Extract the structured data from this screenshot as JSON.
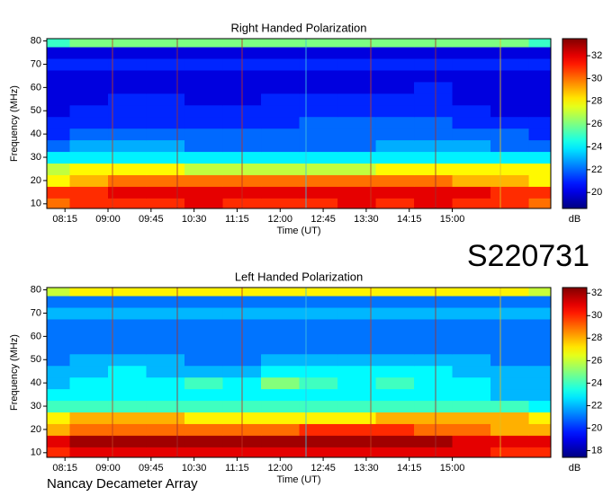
{
  "chart_data": [
    {
      "type": "heatmap",
      "title": "Right Handed Polarization",
      "x_label": "Time (UT)",
      "y_label": "Frequency (MHz)",
      "colorbar_label": "dB",
      "xlim": [
        476,
        1003
      ],
      "ylim": [
        8,
        81
      ],
      "clim": [
        18.6,
        33.5
      ],
      "xticks": [
        {
          "value": 495,
          "label": "08:15"
        },
        {
          "value": 540,
          "label": "09:00"
        },
        {
          "value": 585,
          "label": "09:45"
        },
        {
          "value": 630,
          "label": "10:30"
        },
        {
          "value": 675,
          "label": "11:15"
        },
        {
          "value": 720,
          "label": "12:00"
        },
        {
          "value": 765,
          "label": "12:45"
        },
        {
          "value": 810,
          "label": "13:30"
        },
        {
          "value": 855,
          "label": "14:15"
        },
        {
          "value": 900,
          "label": "15:00"
        }
      ],
      "yticks": [
        10,
        20,
        30,
        40,
        50,
        60,
        70,
        80
      ],
      "cticks": [
        20,
        22,
        24,
        26,
        28,
        30,
        32
      ],
      "x": [
        480,
        520,
        560,
        600,
        640,
        680,
        720,
        760,
        800,
        840,
        880,
        920,
        960,
        1000
      ],
      "y": [
        10,
        15,
        20,
        25,
        30,
        35,
        40,
        45,
        50,
        55,
        60,
        65,
        70,
        75,
        80
      ],
      "z": [
        [
          30,
          31,
          31,
          31,
          32,
          31,
          31,
          31,
          32,
          31,
          32,
          31,
          31,
          30
        ],
        [
          31,
          31,
          32,
          32,
          32,
          32,
          32,
          32,
          32,
          32,
          32,
          32,
          31,
          31
        ],
        [
          28,
          29,
          30,
          30,
          30,
          30,
          30,
          30,
          30,
          30,
          30,
          29,
          29,
          28
        ],
        [
          27,
          28,
          28,
          28,
          27,
          27,
          27,
          27,
          27,
          28,
          28,
          28,
          28,
          28
        ],
        [
          24,
          24,
          24,
          24,
          24,
          24,
          24,
          24,
          24,
          24,
          24,
          24,
          24,
          24
        ],
        [
          22,
          23,
          23,
          23,
          22,
          22,
          22,
          22,
          22,
          23,
          23,
          23,
          22,
          22
        ],
        [
          21,
          22,
          22,
          22,
          22,
          22,
          22,
          22,
          22,
          22,
          22,
          22,
          22,
          21
        ],
        [
          21,
          21,
          21,
          21,
          21,
          21,
          21,
          22,
          22,
          22,
          22,
          21,
          21,
          21
        ],
        [
          20,
          21,
          21,
          21,
          21,
          21,
          21,
          21,
          21,
          21,
          21,
          21,
          20,
          20
        ],
        [
          20,
          20,
          21,
          21,
          20,
          20,
          21,
          21,
          21,
          21,
          21,
          20,
          20,
          20
        ],
        [
          20,
          20,
          20,
          20,
          20,
          20,
          20,
          20,
          20,
          20,
          21,
          20,
          20,
          20
        ],
        [
          20,
          20,
          20,
          20,
          20,
          20,
          20,
          20,
          20,
          20,
          20,
          20,
          20,
          20
        ],
        [
          21,
          21,
          21,
          21,
          21,
          21,
          21,
          21,
          21,
          21,
          21,
          21,
          21,
          21
        ],
        [
          20,
          20,
          20,
          20,
          20,
          20,
          20,
          20,
          20,
          20,
          20,
          20,
          20,
          20
        ],
        [
          25,
          26,
          26,
          26,
          26,
          26,
          26,
          26,
          26,
          26,
          26,
          26,
          26,
          25
        ]
      ]
    },
    {
      "type": "heatmap",
      "title": "Left Handed Polarization",
      "x_label": "Time (UT)",
      "y_label": "Frequency (MHz)",
      "colorbar_label": "dB",
      "xlim": [
        476,
        1003
      ],
      "ylim": [
        8,
        81
      ],
      "clim": [
        17.4,
        32.5
      ],
      "xticks": [
        {
          "value": 495,
          "label": "08:15"
        },
        {
          "value": 540,
          "label": "09:00"
        },
        {
          "value": 585,
          "label": "09:45"
        },
        {
          "value": 630,
          "label": "10:30"
        },
        {
          "value": 675,
          "label": "11:15"
        },
        {
          "value": 720,
          "label": "12:00"
        },
        {
          "value": 765,
          "label": "12:45"
        },
        {
          "value": 810,
          "label": "13:30"
        },
        {
          "value": 855,
          "label": "14:15"
        },
        {
          "value": 900,
          "label": "15:00"
        }
      ],
      "yticks": [
        10,
        20,
        30,
        40,
        50,
        60,
        70,
        80
      ],
      "cticks": [
        18,
        20,
        22,
        24,
        26,
        28,
        30,
        32
      ],
      "x": [
        480,
        520,
        560,
        600,
        640,
        680,
        720,
        760,
        800,
        840,
        880,
        920,
        960,
        1000
      ],
      "y": [
        10,
        15,
        20,
        25,
        30,
        35,
        40,
        45,
        50,
        55,
        60,
        65,
        70,
        75,
        80
      ],
      "z": [
        [
          30,
          31,
          31,
          31,
          31,
          31,
          31,
          31,
          31,
          31,
          31,
          31,
          30,
          30
        ],
        [
          31,
          32,
          32,
          32,
          32,
          32,
          32,
          32,
          32,
          32,
          32,
          31,
          31,
          31
        ],
        [
          28,
          29,
          29,
          29,
          29,
          29,
          29,
          30,
          30,
          30,
          29,
          29,
          28,
          28
        ],
        [
          27,
          28,
          28,
          28,
          27,
          27,
          27,
          27,
          27,
          28,
          28,
          28,
          28,
          27
        ],
        [
          24,
          24,
          24,
          24,
          24,
          24,
          24,
          24,
          24,
          24,
          24,
          24,
          24,
          23
        ],
        [
          23,
          23,
          23,
          23,
          23,
          23,
          23,
          23,
          23,
          23,
          23,
          23,
          22,
          22
        ],
        [
          22,
          23,
          23,
          23,
          24,
          23,
          25,
          24,
          23,
          24,
          23,
          23,
          22,
          22
        ],
        [
          22,
          22,
          23,
          22,
          22,
          22,
          23,
          23,
          23,
          23,
          23,
          22,
          22,
          22
        ],
        [
          21,
          22,
          22,
          22,
          21,
          21,
          22,
          22,
          22,
          22,
          22,
          22,
          21,
          21
        ],
        [
          21,
          21,
          21,
          21,
          21,
          21,
          21,
          21,
          21,
          21,
          21,
          21,
          21,
          21
        ],
        [
          21,
          21,
          21,
          21,
          21,
          21,
          21,
          21,
          21,
          21,
          21,
          21,
          21,
          21
        ],
        [
          21,
          21,
          21,
          21,
          21,
          21,
          21,
          21,
          21,
          21,
          21,
          21,
          21,
          21
        ],
        [
          22,
          22,
          22,
          22,
          22,
          22,
          22,
          22,
          22,
          22,
          22,
          22,
          22,
          22
        ],
        [
          21,
          21,
          21,
          21,
          21,
          21,
          21,
          21,
          21,
          21,
          21,
          21,
          21,
          21
        ],
        [
          26,
          27,
          27,
          27,
          27,
          27,
          27,
          27,
          27,
          27,
          27,
          27,
          27,
          26
        ]
      ]
    }
  ],
  "station_label": "S220731",
  "footer": "Nancay Decameter Array"
}
